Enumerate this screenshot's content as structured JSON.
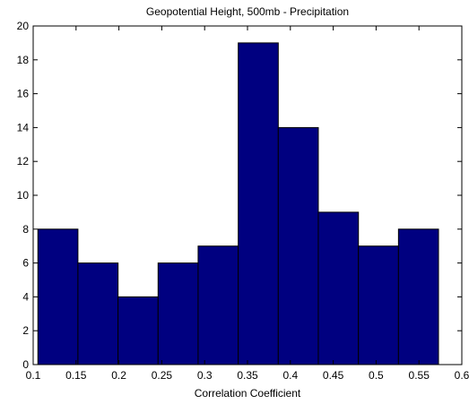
{
  "chart_data": {
    "type": "bar",
    "title": "Geopotential Height, 500mb - Precipitation",
    "xlabel": "Correlation Coefficient",
    "ylabel": "",
    "xlim": [
      0.1,
      0.6
    ],
    "ylim": [
      0,
      20
    ],
    "x_ticks": [
      "0.1",
      "0.15",
      "0.2",
      "0.25",
      "0.3",
      "0.35",
      "0.4",
      "0.45",
      "0.5",
      "0.55",
      "0.6"
    ],
    "y_ticks": [
      "0",
      "2",
      "4",
      "6",
      "8",
      "10",
      "12",
      "14",
      "16",
      "18",
      "20"
    ],
    "bins": [
      {
        "start": 0.1055,
        "end": 0.1522,
        "count": 8
      },
      {
        "start": 0.1522,
        "end": 0.199,
        "count": 6
      },
      {
        "start": 0.199,
        "end": 0.2457,
        "count": 4
      },
      {
        "start": 0.2457,
        "end": 0.2924,
        "count": 6
      },
      {
        "start": 0.2924,
        "end": 0.3392,
        "count": 7
      },
      {
        "start": 0.3392,
        "end": 0.3859,
        "count": 19
      },
      {
        "start": 0.3859,
        "end": 0.4326,
        "count": 14
      },
      {
        "start": 0.4326,
        "end": 0.4794,
        "count": 9
      },
      {
        "start": 0.4794,
        "end": 0.5261,
        "count": 7
      },
      {
        "start": 0.5261,
        "end": 0.5728,
        "count": 8
      }
    ],
    "bar_color": "#000080",
    "edge_color": "#000000",
    "grid": false,
    "legend": "none"
  }
}
